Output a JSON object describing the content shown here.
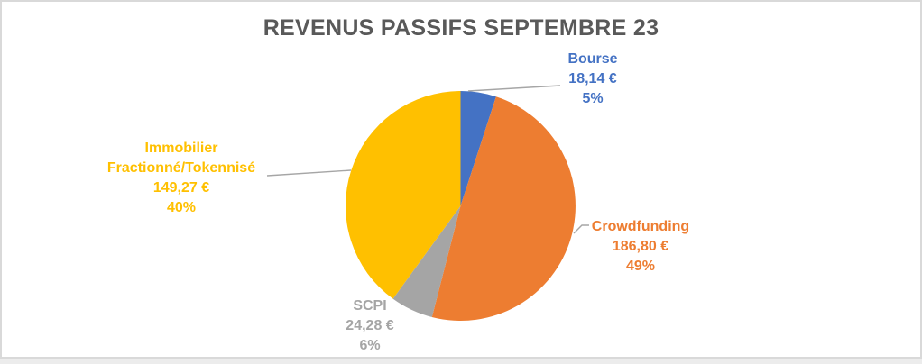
{
  "page": {
    "background_color": "#FFFFFF",
    "frame_border_color": "#D9D9D9",
    "outside_strip_color": "#ECECEC"
  },
  "chart_data": {
    "type": "pie",
    "title": "REVENUS PASSIFS SEPTEMBRE 23",
    "title_color": "#595959",
    "start_angle_deg": 0,
    "direction": "clockwise",
    "legend_position": "none",
    "label_style": "outside callout: name, value, percent",
    "leader_line_color": "#A6A6A6",
    "currency_symbol": "€",
    "segments": [
      {
        "label": "Bourse",
        "label_lines": [
          "Bourse"
        ],
        "value": 18.14,
        "value_text": "18,14 €",
        "percent": 5,
        "percent_text": "5%",
        "color": "#4472C4"
      },
      {
        "label": "Crowdfunding",
        "label_lines": [
          "Crowdfunding"
        ],
        "value": 186.8,
        "value_text": "186,80 €",
        "percent": 49,
        "percent_text": "49%",
        "color": "#ED7D31"
      },
      {
        "label": "SCPI",
        "label_lines": [
          "SCPI"
        ],
        "value": 24.28,
        "value_text": "24,28 €",
        "percent": 6,
        "percent_text": "6%",
        "color": "#A5A5A5"
      },
      {
        "label": "Immobilier Fractionné/Tokennisé",
        "label_lines": [
          "Immobilier",
          "Fractionné/Tokennisé"
        ],
        "value": 149.27,
        "value_text": "149,27 €",
        "percent": 40,
        "percent_text": "40%",
        "color": "#FFC000"
      }
    ]
  }
}
